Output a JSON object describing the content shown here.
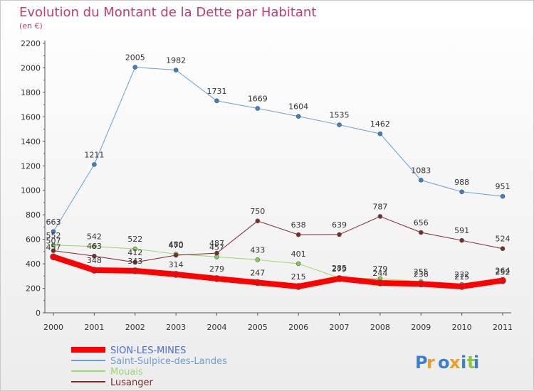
{
  "chart_data": {
    "type": "line",
    "title": "Evolution du Montant de la Dette par Habitant",
    "subtitle": "(en €)",
    "xlabel": "",
    "ylabel": "",
    "x": [
      "2000",
      "2001",
      "2002",
      "2003",
      "2004",
      "2005",
      "2006",
      "2007",
      "2008",
      "2009",
      "2010",
      "2011"
    ],
    "ylim": [
      0,
      2200
    ],
    "yticks": [
      "0",
      "200",
      "400",
      "600",
      "800",
      "1000",
      "1200",
      "1400",
      "1600",
      "1800",
      "2000",
      "2200"
    ],
    "grid": false,
    "legend_position": "bottom-left",
    "series": [
      {
        "name": "Saint-Sulpice-des-Landes",
        "color": "#6a9fd0",
        "marker": "#3b82c4",
        "width": 1,
        "values": [
          663,
          1211,
          2005,
          1982,
          1731,
          1669,
          1604,
          1535,
          1462,
          1083,
          988,
          951
        ]
      },
      {
        "name": "Mouais",
        "color": "#9ad66a",
        "marker": "#7fd14a",
        "width": 1,
        "values": [
          552,
          542,
          522,
          480,
          457,
          433,
          401,
          285,
          279,
          255,
          232,
          252
        ]
      },
      {
        "name": "Lusanger",
        "color": "#7a2a2a",
        "marker": "#7a2a2a",
        "width": 1,
        "values": [
          507,
          463,
          412,
          470,
          487,
          750,
          638,
          639,
          787,
          656,
          591,
          524
        ]
      },
      {
        "name": "SION-LES-MINES",
        "color": "#ff0000",
        "marker": "#ff0000",
        "width": 8,
        "values": [
          457,
          348,
          343,
          314,
          279,
          247,
          215,
          279,
          244,
          236,
          215,
          264
        ]
      }
    ],
    "legend_order": [
      "SION-LES-MINES",
      "Saint-Sulpice-des-Landes",
      "Mouais",
      "Lusanger"
    ]
  },
  "watermark": "Proxiti"
}
